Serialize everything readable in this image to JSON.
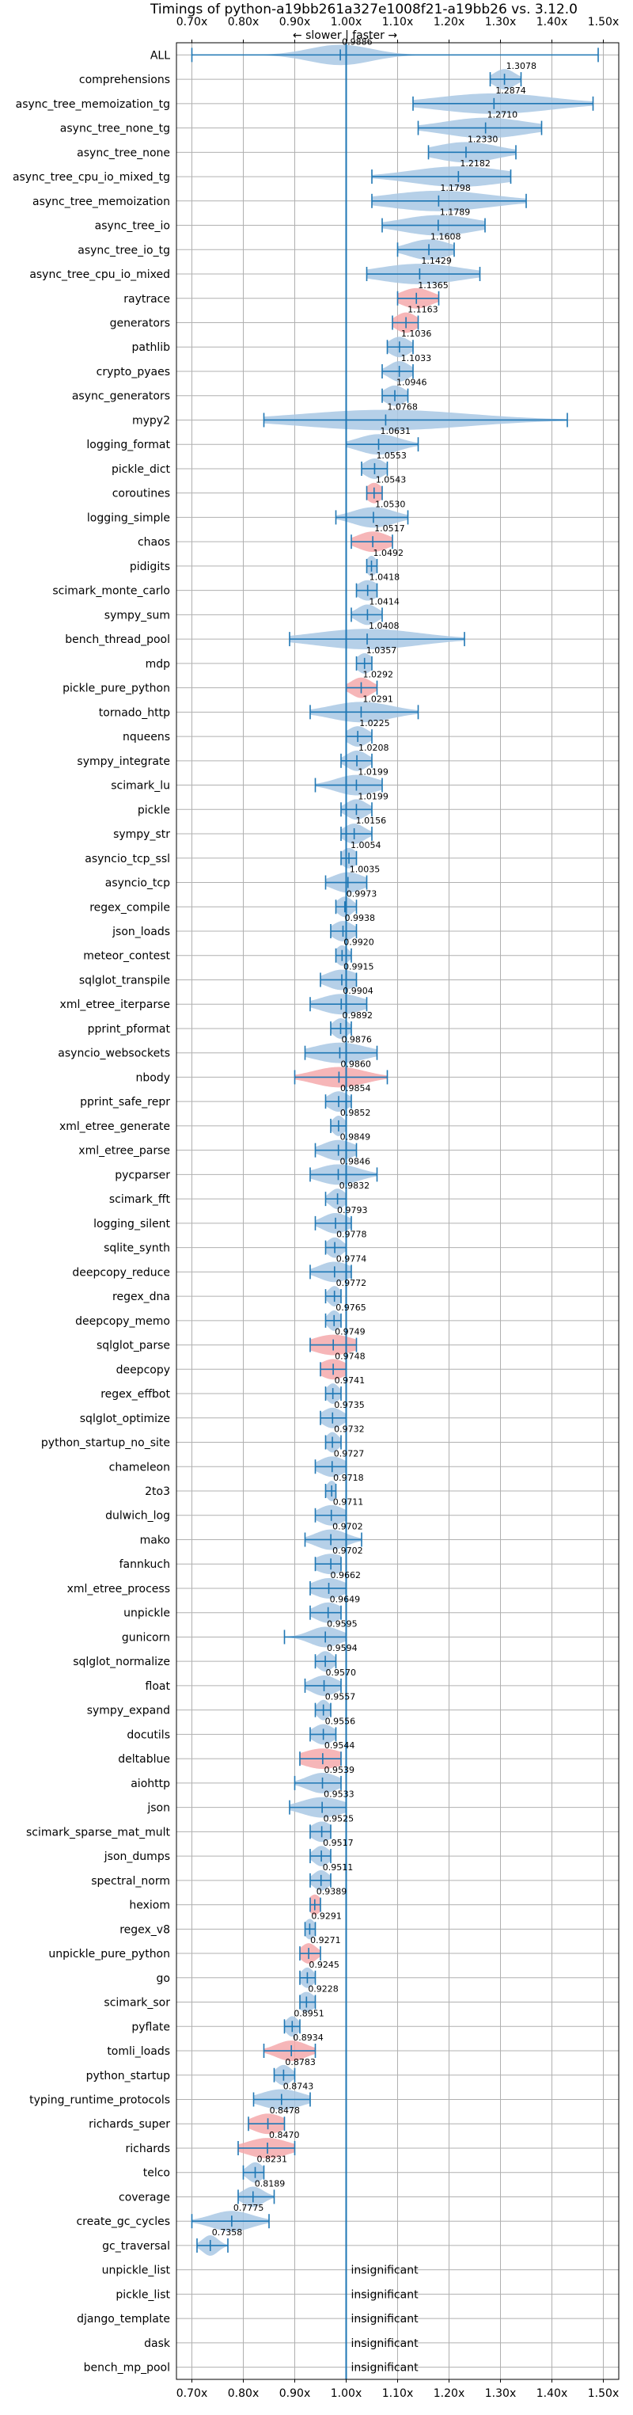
{
  "chart_data": {
    "type": "violin",
    "title": "Timings of python-a19bb261a327e1008f21-a19bb26 vs. 3.12.0",
    "annotation": "← slower | faster →",
    "xlim": [
      0.67,
      1.53
    ],
    "x_ticks": [
      0.7,
      0.8,
      0.9,
      1.0,
      1.1,
      1.2,
      1.3,
      1.4,
      1.5
    ],
    "x_tick_labels": [
      "0.70x",
      "0.80x",
      "0.90x",
      "1.00x",
      "1.10x",
      "1.20x",
      "1.30x",
      "1.40x",
      "1.50x"
    ],
    "reference_line": 1.0,
    "grid": true,
    "colors": {
      "faster": "#a9c8e4",
      "slower": "#f4a9ac",
      "line": "#1f77b4",
      "grid": "#b0b0b0",
      "reference": "#1f77b4"
    },
    "insignificant_label": "insignificant",
    "benchmarks": [
      {
        "name": "ALL",
        "value": 0.9886,
        "min": 0.7,
        "max": 1.49,
        "spread": 0.06,
        "slower": false
      },
      {
        "name": "comprehensions",
        "value": 1.3078,
        "min": 1.28,
        "max": 1.34,
        "spread": 0.02,
        "slower": false
      },
      {
        "name": "async_tree_memoization_tg",
        "value": 1.2874,
        "min": 1.13,
        "max": 1.48,
        "spread": 0.11,
        "slower": false
      },
      {
        "name": "async_tree_none_tg",
        "value": 1.271,
        "min": 1.14,
        "max": 1.38,
        "spread": 0.08,
        "slower": false
      },
      {
        "name": "async_tree_none",
        "value": 1.233,
        "min": 1.16,
        "max": 1.33,
        "spread": 0.06,
        "slower": false
      },
      {
        "name": "async_tree_cpu_io_mixed_tg",
        "value": 1.2182,
        "min": 1.05,
        "max": 1.32,
        "spread": 0.09,
        "slower": false
      },
      {
        "name": "async_tree_memoization",
        "value": 1.1798,
        "min": 1.05,
        "max": 1.35,
        "spread": 0.1,
        "slower": false
      },
      {
        "name": "async_tree_io",
        "value": 1.1789,
        "min": 1.07,
        "max": 1.27,
        "spread": 0.07,
        "slower": false
      },
      {
        "name": "async_tree_io_tg",
        "value": 1.1608,
        "min": 1.1,
        "max": 1.21,
        "spread": 0.04,
        "slower": false
      },
      {
        "name": "async_tree_cpu_io_mixed",
        "value": 1.1429,
        "min": 1.04,
        "max": 1.26,
        "spread": 0.08,
        "slower": false
      },
      {
        "name": "raytrace",
        "value": 1.1365,
        "min": 1.1,
        "max": 1.18,
        "spread": 0.03,
        "slower": true
      },
      {
        "name": "generators",
        "value": 1.1163,
        "min": 1.09,
        "max": 1.14,
        "spread": 0.02,
        "slower": true
      },
      {
        "name": "pathlib",
        "value": 1.1036,
        "min": 1.08,
        "max": 1.13,
        "spread": 0.02,
        "slower": false
      },
      {
        "name": "crypto_pyaes",
        "value": 1.1033,
        "min": 1.07,
        "max": 1.13,
        "spread": 0.02,
        "slower": false
      },
      {
        "name": "async_generators",
        "value": 1.0946,
        "min": 1.07,
        "max": 1.12,
        "spread": 0.02,
        "slower": false
      },
      {
        "name": "mypy2",
        "value": 1.0768,
        "min": 0.84,
        "max": 1.43,
        "spread": 0.16,
        "slower": false
      },
      {
        "name": "logging_format",
        "value": 1.0631,
        "min": 1.0,
        "max": 1.14,
        "spread": 0.04,
        "slower": false
      },
      {
        "name": "pickle_dict",
        "value": 1.0553,
        "min": 1.03,
        "max": 1.08,
        "spread": 0.02,
        "slower": false
      },
      {
        "name": "coroutines",
        "value": 1.0543,
        "min": 1.04,
        "max": 1.07,
        "spread": 0.015,
        "slower": true
      },
      {
        "name": "logging_simple",
        "value": 1.053,
        "min": 0.98,
        "max": 1.12,
        "spread": 0.04,
        "slower": false
      },
      {
        "name": "chaos",
        "value": 1.0517,
        "min": 1.01,
        "max": 1.09,
        "spread": 0.03,
        "slower": true
      },
      {
        "name": "pidigits",
        "value": 1.0492,
        "min": 1.04,
        "max": 1.06,
        "spread": 0.01,
        "slower": false
      },
      {
        "name": "scimark_monte_carlo",
        "value": 1.0418,
        "min": 1.02,
        "max": 1.06,
        "spread": 0.02,
        "slower": false
      },
      {
        "name": "sympy_sum",
        "value": 1.0414,
        "min": 1.01,
        "max": 1.07,
        "spread": 0.02,
        "slower": false
      },
      {
        "name": "bench_thread_pool",
        "value": 1.0408,
        "min": 0.89,
        "max": 1.23,
        "spread": 0.1,
        "slower": false
      },
      {
        "name": "mdp",
        "value": 1.0357,
        "min": 1.02,
        "max": 1.05,
        "spread": 0.015,
        "slower": false
      },
      {
        "name": "pickle_pure_python",
        "value": 1.0292,
        "min": 1.0,
        "max": 1.06,
        "spread": 0.02,
        "slower": true
      },
      {
        "name": "tornado_http",
        "value": 1.0291,
        "min": 0.93,
        "max": 1.14,
        "spread": 0.06,
        "slower": false
      },
      {
        "name": "nqueens",
        "value": 1.0225,
        "min": 1.0,
        "max": 1.05,
        "spread": 0.02,
        "slower": false
      },
      {
        "name": "sympy_integrate",
        "value": 1.0208,
        "min": 0.99,
        "max": 1.05,
        "spread": 0.02,
        "slower": false
      },
      {
        "name": "scimark_lu",
        "value": 1.0199,
        "min": 0.94,
        "max": 1.07,
        "spread": 0.04,
        "slower": false
      },
      {
        "name": "pickle",
        "value": 1.0199,
        "min": 0.99,
        "max": 1.05,
        "spread": 0.02,
        "slower": false
      },
      {
        "name": "sympy_str",
        "value": 1.0156,
        "min": 0.99,
        "max": 1.05,
        "spread": 0.02,
        "slower": false
      },
      {
        "name": "asyncio_tcp_ssl",
        "value": 1.0054,
        "min": 0.99,
        "max": 1.02,
        "spread": 0.015,
        "slower": false
      },
      {
        "name": "asyncio_tcp",
        "value": 1.0035,
        "min": 0.96,
        "max": 1.04,
        "spread": 0.03,
        "slower": false
      },
      {
        "name": "regex_compile",
        "value": 0.9973,
        "min": 0.98,
        "max": 1.02,
        "spread": 0.015,
        "slower": false
      },
      {
        "name": "json_loads",
        "value": 0.9938,
        "min": 0.97,
        "max": 1.02,
        "spread": 0.02,
        "slower": false
      },
      {
        "name": "meteor_contest",
        "value": 0.992,
        "min": 0.98,
        "max": 1.01,
        "spread": 0.012,
        "slower": false
      },
      {
        "name": "sqlglot_transpile",
        "value": 0.9915,
        "min": 0.95,
        "max": 1.02,
        "spread": 0.03,
        "slower": false
      },
      {
        "name": "xml_etree_iterparse",
        "value": 0.9904,
        "min": 0.93,
        "max": 1.04,
        "spread": 0.04,
        "slower": false
      },
      {
        "name": "pprint_pformat",
        "value": 0.9892,
        "min": 0.97,
        "max": 1.01,
        "spread": 0.015,
        "slower": false
      },
      {
        "name": "asyncio_websockets",
        "value": 0.9876,
        "min": 0.92,
        "max": 1.06,
        "spread": 0.05,
        "slower": false
      },
      {
        "name": "nbody",
        "value": 0.986,
        "min": 0.9,
        "max": 1.08,
        "spread": 0.05,
        "slower": true
      },
      {
        "name": "pprint_safe_repr",
        "value": 0.9854,
        "min": 0.96,
        "max": 1.01,
        "spread": 0.02,
        "slower": false
      },
      {
        "name": "xml_etree_generate",
        "value": 0.9852,
        "min": 0.97,
        "max": 1.0,
        "spread": 0.012,
        "slower": false
      },
      {
        "name": "xml_etree_parse",
        "value": 0.9849,
        "min": 0.94,
        "max": 1.02,
        "spread": 0.03,
        "slower": false
      },
      {
        "name": "pycparser",
        "value": 0.9846,
        "min": 0.93,
        "max": 1.06,
        "spread": 0.04,
        "slower": false
      },
      {
        "name": "scimark_fft",
        "value": 0.9832,
        "min": 0.96,
        "max": 1.0,
        "spread": 0.015,
        "slower": false
      },
      {
        "name": "logging_silent",
        "value": 0.9793,
        "min": 0.94,
        "max": 1.01,
        "spread": 0.025,
        "slower": false
      },
      {
        "name": "sqlite_synth",
        "value": 0.9778,
        "min": 0.96,
        "max": 1.0,
        "spread": 0.015,
        "slower": false
      },
      {
        "name": "deepcopy_reduce",
        "value": 0.9774,
        "min": 0.93,
        "max": 1.01,
        "spread": 0.03,
        "slower": false
      },
      {
        "name": "regex_dna",
        "value": 0.9772,
        "min": 0.96,
        "max": 0.99,
        "spread": 0.012,
        "slower": false
      },
      {
        "name": "deepcopy_memo",
        "value": 0.9765,
        "min": 0.96,
        "max": 0.99,
        "spread": 0.012,
        "slower": false
      },
      {
        "name": "sqlglot_parse",
        "value": 0.9749,
        "min": 0.93,
        "max": 1.02,
        "spread": 0.04,
        "slower": true
      },
      {
        "name": "deepcopy",
        "value": 0.9748,
        "min": 0.95,
        "max": 1.0,
        "spread": 0.025,
        "slower": true
      },
      {
        "name": "regex_effbot",
        "value": 0.9741,
        "min": 0.96,
        "max": 0.99,
        "spread": 0.012,
        "slower": false
      },
      {
        "name": "sqlglot_optimize",
        "value": 0.9735,
        "min": 0.95,
        "max": 1.0,
        "spread": 0.02,
        "slower": false
      },
      {
        "name": "python_startup_no_site",
        "value": 0.9732,
        "min": 0.96,
        "max": 0.99,
        "spread": 0.012,
        "slower": false
      },
      {
        "name": "chameleon",
        "value": 0.9727,
        "min": 0.94,
        "max": 1.0,
        "spread": 0.025,
        "slower": false
      },
      {
        "name": "2to3",
        "value": 0.9718,
        "min": 0.96,
        "max": 0.98,
        "spread": 0.01,
        "slower": false
      },
      {
        "name": "dulwich_log",
        "value": 0.9711,
        "min": 0.94,
        "max": 1.0,
        "spread": 0.025,
        "slower": false
      },
      {
        "name": "mako",
        "value": 0.9702,
        "min": 0.92,
        "max": 1.03,
        "spread": 0.03,
        "slower": false
      },
      {
        "name": "fannkuch",
        "value": 0.9702,
        "min": 0.94,
        "max": 0.99,
        "spread": 0.03,
        "slower": false
      },
      {
        "name": "xml_etree_process",
        "value": 0.9662,
        "min": 0.93,
        "max": 1.0,
        "spread": 0.03,
        "slower": false
      },
      {
        "name": "unpickle",
        "value": 0.9649,
        "min": 0.93,
        "max": 0.99,
        "spread": 0.025,
        "slower": false
      },
      {
        "name": "gunicorn",
        "value": 0.9595,
        "min": 0.88,
        "max": 1.0,
        "spread": 0.03,
        "slower": false
      },
      {
        "name": "sqlglot_normalize",
        "value": 0.9594,
        "min": 0.94,
        "max": 0.98,
        "spread": 0.015,
        "slower": false
      },
      {
        "name": "float",
        "value": 0.957,
        "min": 0.92,
        "max": 0.99,
        "spread": 0.025,
        "slower": false
      },
      {
        "name": "sympy_expand",
        "value": 0.9557,
        "min": 0.94,
        "max": 0.97,
        "spread": 0.012,
        "slower": false
      },
      {
        "name": "docutils",
        "value": 0.9556,
        "min": 0.93,
        "max": 0.98,
        "spread": 0.02,
        "slower": false
      },
      {
        "name": "deltablue",
        "value": 0.9544,
        "min": 0.91,
        "max": 0.99,
        "spread": 0.04,
        "slower": true
      },
      {
        "name": "aiohttp",
        "value": 0.9539,
        "min": 0.9,
        "max": 0.99,
        "spread": 0.03,
        "slower": false
      },
      {
        "name": "json",
        "value": 0.9533,
        "min": 0.89,
        "max": 1.0,
        "spread": 0.04,
        "slower": false
      },
      {
        "name": "scimark_sparse_mat_mult",
        "value": 0.9525,
        "min": 0.93,
        "max": 0.97,
        "spread": 0.02,
        "slower": false
      },
      {
        "name": "json_dumps",
        "value": 0.9517,
        "min": 0.93,
        "max": 0.97,
        "spread": 0.015,
        "slower": false
      },
      {
        "name": "spectral_norm",
        "value": 0.9511,
        "min": 0.93,
        "max": 0.97,
        "spread": 0.015,
        "slower": false
      },
      {
        "name": "hexiom",
        "value": 0.9389,
        "min": 0.93,
        "max": 0.95,
        "spread": 0.012,
        "slower": true
      },
      {
        "name": "regex_v8",
        "value": 0.9291,
        "min": 0.92,
        "max": 0.94,
        "spread": 0.01,
        "slower": false
      },
      {
        "name": "unpickle_pure_python",
        "value": 0.9271,
        "min": 0.91,
        "max": 0.95,
        "spread": 0.015,
        "slower": true
      },
      {
        "name": "go",
        "value": 0.9245,
        "min": 0.91,
        "max": 0.94,
        "spread": 0.012,
        "slower": false
      },
      {
        "name": "scimark_sor",
        "value": 0.9228,
        "min": 0.91,
        "max": 0.94,
        "spread": 0.015,
        "slower": false
      },
      {
        "name": "pyflate",
        "value": 0.8951,
        "min": 0.88,
        "max": 0.91,
        "spread": 0.012,
        "slower": false
      },
      {
        "name": "tomli_loads",
        "value": 0.8934,
        "min": 0.84,
        "max": 0.94,
        "spread": 0.03,
        "slower": true
      },
      {
        "name": "python_startup",
        "value": 0.8783,
        "min": 0.86,
        "max": 0.9,
        "spread": 0.015,
        "slower": false
      },
      {
        "name": "typing_runtime_protocols",
        "value": 0.8743,
        "min": 0.82,
        "max": 0.93,
        "spread": 0.04,
        "slower": false
      },
      {
        "name": "richards_super",
        "value": 0.8478,
        "min": 0.81,
        "max": 0.88,
        "spread": 0.03,
        "slower": true
      },
      {
        "name": "richards",
        "value": 0.847,
        "min": 0.79,
        "max": 0.9,
        "spread": 0.04,
        "slower": true
      },
      {
        "name": "telco",
        "value": 0.8231,
        "min": 0.8,
        "max": 0.84,
        "spread": 0.015,
        "slower": false
      },
      {
        "name": "coverage",
        "value": 0.8189,
        "min": 0.79,
        "max": 0.86,
        "spread": 0.02,
        "slower": false
      },
      {
        "name": "create_gc_cycles",
        "value": 0.7775,
        "min": 0.7,
        "max": 0.85,
        "spread": 0.04,
        "slower": false
      },
      {
        "name": "gc_traversal",
        "value": 0.7358,
        "min": 0.71,
        "max": 0.77,
        "spread": 0.015,
        "slower": false
      },
      {
        "name": "unpickle_list",
        "value": null,
        "insignificant": true
      },
      {
        "name": "pickle_list",
        "value": null,
        "insignificant": true
      },
      {
        "name": "django_template",
        "value": null,
        "insignificant": true
      },
      {
        "name": "dask",
        "value": null,
        "insignificant": true
      },
      {
        "name": "bench_mp_pool",
        "value": null,
        "insignificant": true
      }
    ]
  }
}
